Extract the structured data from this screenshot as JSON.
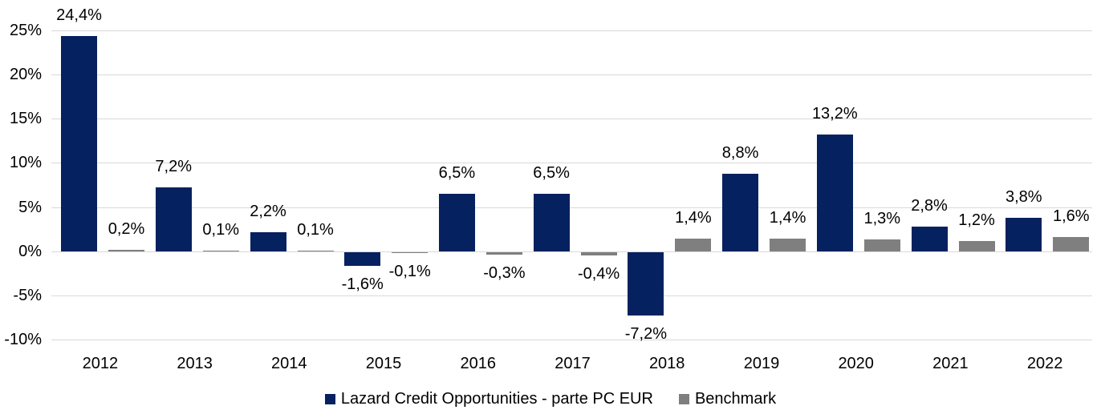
{
  "chart_data": {
    "type": "bar",
    "title": "",
    "xlabel": "",
    "ylabel": "",
    "categories": [
      "2012",
      "2013",
      "2014",
      "2015",
      "2016",
      "2017",
      "2018",
      "2019",
      "2020",
      "2021",
      "2022"
    ],
    "series": [
      {
        "name": "Lazard Credit Opportunities - parte PC EUR",
        "color": "#05215F",
        "values": [
          24.4,
          7.2,
          2.2,
          -1.6,
          6.5,
          6.5,
          -7.2,
          8.8,
          13.2,
          2.8,
          3.8
        ],
        "labels": [
          "24,4%",
          "7,2%",
          "2,2%",
          "-1,6%",
          "6,5%",
          "6,5%",
          "-7,2%",
          "8,8%",
          "13,2%",
          "2,8%",
          "3,8%"
        ]
      },
      {
        "name": "Benchmark",
        "color": "#7F7F7F",
        "values": [
          0.2,
          0.1,
          0.1,
          -0.1,
          -0.3,
          -0.4,
          1.4,
          1.4,
          1.3,
          1.2,
          1.6
        ],
        "labels": [
          "0,2%",
          "0,1%",
          "0,1%",
          "-0,1%",
          "-0,3%",
          "-0,4%",
          "1,4%",
          "1,4%",
          "1,3%",
          "1,2%",
          "1,6%"
        ]
      }
    ],
    "y_axis": {
      "min": -10,
      "max": 25,
      "tick_values": [
        25,
        20,
        15,
        10,
        5,
        0,
        -5,
        -10
      ],
      "tick_labels": [
        "25%",
        "20%",
        "15%",
        "10%",
        "5%",
        "0%",
        "-5%",
        "-10%"
      ]
    },
    "grid": true,
    "gridline_color": "#D9D9D9",
    "text_color": "#000000",
    "background_color": "#FFFFFF",
    "legend_position": "bottom"
  }
}
